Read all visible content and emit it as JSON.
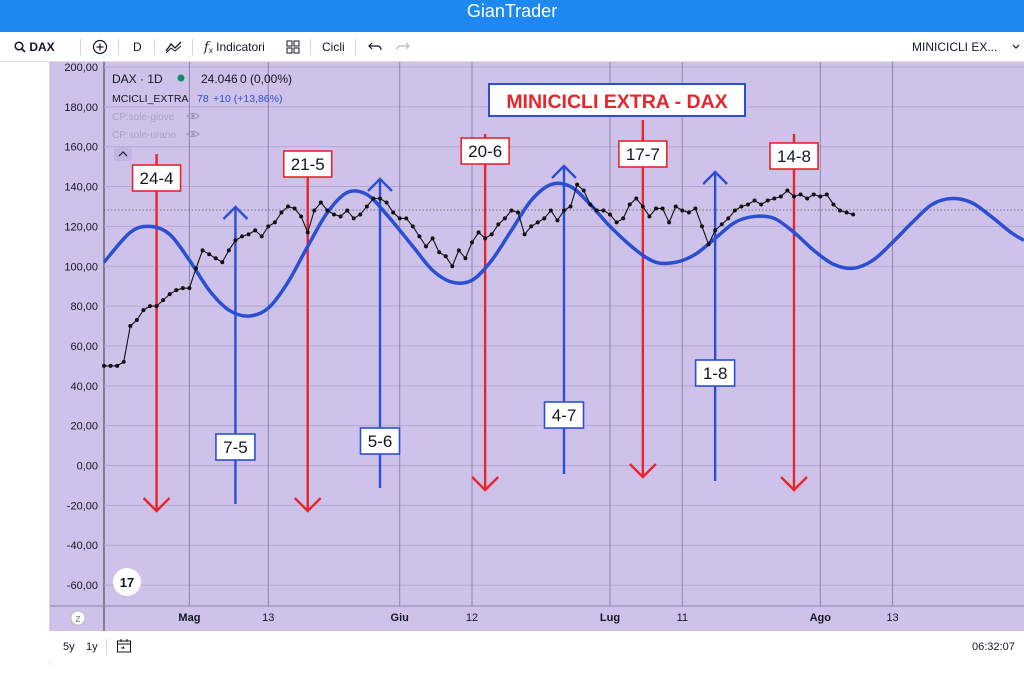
{
  "app": {
    "title": "GianTrader"
  },
  "toolbar": {
    "symbol": "DAX",
    "interval": "D",
    "indicators_label": "Indicatori",
    "cycles_label": "Cicli",
    "layout_name": "MINICICLI EX..."
  },
  "legend": {
    "main_series": "DAX · 1D",
    "main_value": "24.046",
    "main_change": "0 (0,00%)",
    "indicator_name": "MCICLI_EXTRA",
    "indicator_value": "78",
    "indicator_change": "+10 (+13,86%)",
    "hidden_1": "CP:sole-giove",
    "hidden_2": "CP:sole-urano"
  },
  "bottom": {
    "range_5y": "5y",
    "range_1y": "1y",
    "clock": "06:32:07"
  },
  "colors": {
    "bg_plot": "#cfc2ea",
    "blue_line": "#2a4fd2",
    "black_line": "#111111",
    "red_arrow": "#e8252b",
    "blue_arrow": "#2a4fd2",
    "title_text": "#e8252b",
    "titlebar": "#1e88f0"
  },
  "icons": [
    "search-icon",
    "plus-circle-icon",
    "indicator-chart-icon",
    "fx-icon",
    "grid-icon",
    "undo-icon",
    "redo-icon",
    "chevron-down-icon",
    "crosshair-icon",
    "trendline-icon",
    "fib-icon",
    "pattern-icon",
    "prediction-icon",
    "brush-icon",
    "text-icon",
    "emoji-icon",
    "ruler-icon",
    "zoom-in-icon",
    "magnet-icon",
    "lock-draw-icon",
    "lock-icon",
    "eye-icon",
    "trash-icon",
    "layers-icon",
    "tv-logo-icon",
    "date-range-icon"
  ],
  "chart_data": {
    "type": "line",
    "title": "MINICICLI EXTRA - DAX",
    "ylim": [
      -70,
      200
    ],
    "yticks": [
      "200,00",
      "180,00",
      "160,00",
      "140,00",
      "120,00",
      "100,00",
      "80,00",
      "60,00",
      "40,00",
      "20,00",
      "0,00",
      "-20,00",
      "-40,00",
      "-60,00"
    ],
    "xticks": [
      "Mag",
      "13",
      "Giu",
      "12",
      "Lug",
      "11",
      "Ago",
      "13"
    ],
    "xtick_days": [
      -10,
      2,
      22,
      33,
      54,
      65,
      86,
      97
    ],
    "x_range_days": [
      -23,
      117
    ],
    "dotted_reference_y": 127,
    "series": [
      {
        "key": "cycle",
        "style": "smooth",
        "points": [
          [
            -23,
            102
          ],
          [
            -19,
            117
          ],
          [
            -16,
            120
          ],
          [
            -13,
            116
          ],
          [
            -10,
            103
          ],
          [
            -7,
            88
          ],
          [
            -4,
            78
          ],
          [
            -1,
            75
          ],
          [
            2,
            79
          ],
          [
            5,
            92
          ],
          [
            8,
            110
          ],
          [
            11,
            127
          ],
          [
            14,
            137
          ],
          [
            17,
            136
          ],
          [
            20,
            126
          ],
          [
            24,
            110
          ],
          [
            27,
            98
          ],
          [
            30,
            92
          ],
          [
            33,
            93
          ],
          [
            36,
            103
          ],
          [
            39,
            118
          ],
          [
            42,
            133
          ],
          [
            45,
            141
          ],
          [
            48,
            140
          ],
          [
            51,
            131
          ],
          [
            54,
            120
          ],
          [
            58,
            108
          ],
          [
            61,
            102
          ],
          [
            64,
            102
          ],
          [
            67,
            106
          ],
          [
            70,
            114
          ],
          [
            73,
            122
          ],
          [
            76,
            125
          ],
          [
            79,
            124
          ],
          [
            82,
            117
          ],
          [
            85,
            108
          ],
          [
            88,
            101
          ],
          [
            91,
            99
          ],
          [
            94,
            103
          ],
          [
            97,
            112
          ],
          [
            100,
            122
          ],
          [
            103,
            131
          ],
          [
            106,
            134
          ],
          [
            109,
            132
          ],
          [
            112,
            125
          ],
          [
            115,
            117
          ],
          [
            117,
            113
          ]
        ]
      },
      {
        "key": "price",
        "style": "markers",
        "points": [
          [
            -23,
            50
          ],
          [
            -22,
            50
          ],
          [
            -21,
            50
          ],
          [
            -20,
            52
          ],
          [
            -19,
            70
          ],
          [
            -18,
            73
          ],
          [
            -17,
            78
          ],
          [
            -16,
            80
          ],
          [
            -15,
            80
          ],
          [
            -14,
            83
          ],
          [
            -13,
            86
          ],
          [
            -12,
            88
          ],
          [
            -11,
            89
          ],
          [
            -10,
            89
          ],
          [
            -9,
            99
          ],
          [
            -8,
            108
          ],
          [
            -7,
            106
          ],
          [
            -6,
            104
          ],
          [
            -5,
            102
          ],
          [
            -4,
            108
          ],
          [
            -3,
            113
          ],
          [
            -2,
            115
          ],
          [
            -1,
            116
          ],
          [
            0,
            118
          ],
          [
            1,
            115
          ],
          [
            2,
            120
          ],
          [
            3,
            122
          ],
          [
            4,
            127
          ],
          [
            5,
            130
          ],
          [
            6,
            129
          ],
          [
            7,
            125
          ],
          [
            8,
            117
          ],
          [
            9,
            128
          ],
          [
            10,
            132
          ],
          [
            11,
            128
          ],
          [
            12,
            126
          ],
          [
            13,
            125
          ],
          [
            14,
            128
          ],
          [
            15,
            124
          ],
          [
            16,
            126
          ],
          [
            17,
            130
          ],
          [
            18,
            134
          ],
          [
            19,
            134
          ],
          [
            20,
            132
          ],
          [
            21,
            127
          ],
          [
            22,
            124
          ],
          [
            23,
            124
          ],
          [
            24,
            120
          ],
          [
            25,
            115
          ],
          [
            26,
            110
          ],
          [
            27,
            114
          ],
          [
            28,
            107
          ],
          [
            29,
            105
          ],
          [
            30,
            100
          ],
          [
            31,
            108
          ],
          [
            32,
            104
          ],
          [
            33,
            112
          ],
          [
            34,
            117
          ],
          [
            35,
            114
          ],
          [
            36,
            116
          ],
          [
            37,
            121
          ],
          [
            38,
            124
          ],
          [
            39,
            128
          ],
          [
            40,
            127
          ],
          [
            41,
            116
          ],
          [
            42,
            120
          ],
          [
            43,
            122
          ],
          [
            44,
            124
          ],
          [
            45,
            128
          ],
          [
            46,
            123
          ],
          [
            47,
            128
          ],
          [
            48,
            130
          ],
          [
            49,
            141
          ],
          [
            50,
            138
          ],
          [
            51,
            131
          ],
          [
            52,
            128
          ],
          [
            53,
            128
          ],
          [
            54,
            126
          ],
          [
            55,
            122
          ],
          [
            56,
            124
          ],
          [
            57,
            131
          ],
          [
            58,
            134
          ],
          [
            59,
            130
          ],
          [
            60,
            125
          ],
          [
            61,
            129
          ],
          [
            62,
            129
          ],
          [
            63,
            122
          ],
          [
            64,
            130
          ],
          [
            65,
            128
          ],
          [
            66,
            127
          ],
          [
            67,
            129
          ],
          [
            68,
            120
          ],
          [
            69,
            111
          ],
          [
            70,
            118
          ],
          [
            71,
            121
          ],
          [
            72,
            124
          ],
          [
            73,
            128
          ],
          [
            74,
            130
          ],
          [
            75,
            131
          ],
          [
            76,
            133
          ],
          [
            77,
            131
          ],
          [
            78,
            133
          ],
          [
            79,
            134
          ],
          [
            80,
            135
          ],
          [
            81,
            138
          ],
          [
            82,
            135
          ],
          [
            83,
            136
          ],
          [
            84,
            134
          ],
          [
            85,
            136
          ],
          [
            86,
            135
          ],
          [
            87,
            136
          ],
          [
            88,
            131
          ],
          [
            89,
            128
          ],
          [
            90,
            127
          ],
          [
            91,
            126
          ]
        ]
      }
    ],
    "annotations": [
      {
        "label": "24-4",
        "kind": "top",
        "color": "red",
        "x_day": -15
      },
      {
        "label": "7-5",
        "kind": "bottom",
        "color": "blue",
        "x_day": -3
      },
      {
        "label": "21-5",
        "kind": "top",
        "color": "red",
        "x_day": 8
      },
      {
        "label": "5-6",
        "kind": "bottom",
        "color": "blue",
        "x_day": 19
      },
      {
        "label": "20-6",
        "kind": "top",
        "color": "red",
        "x_day": 35
      },
      {
        "label": "4-7",
        "kind": "bottom",
        "color": "blue",
        "x_day": 47
      },
      {
        "label": "17-7",
        "kind": "top",
        "color": "red",
        "x_day": 59
      },
      {
        "label": "1-8",
        "kind": "bottom",
        "color": "blue",
        "x_day": 70
      },
      {
        "label": "14-8",
        "kind": "top",
        "color": "red",
        "x_day": 82
      }
    ]
  }
}
